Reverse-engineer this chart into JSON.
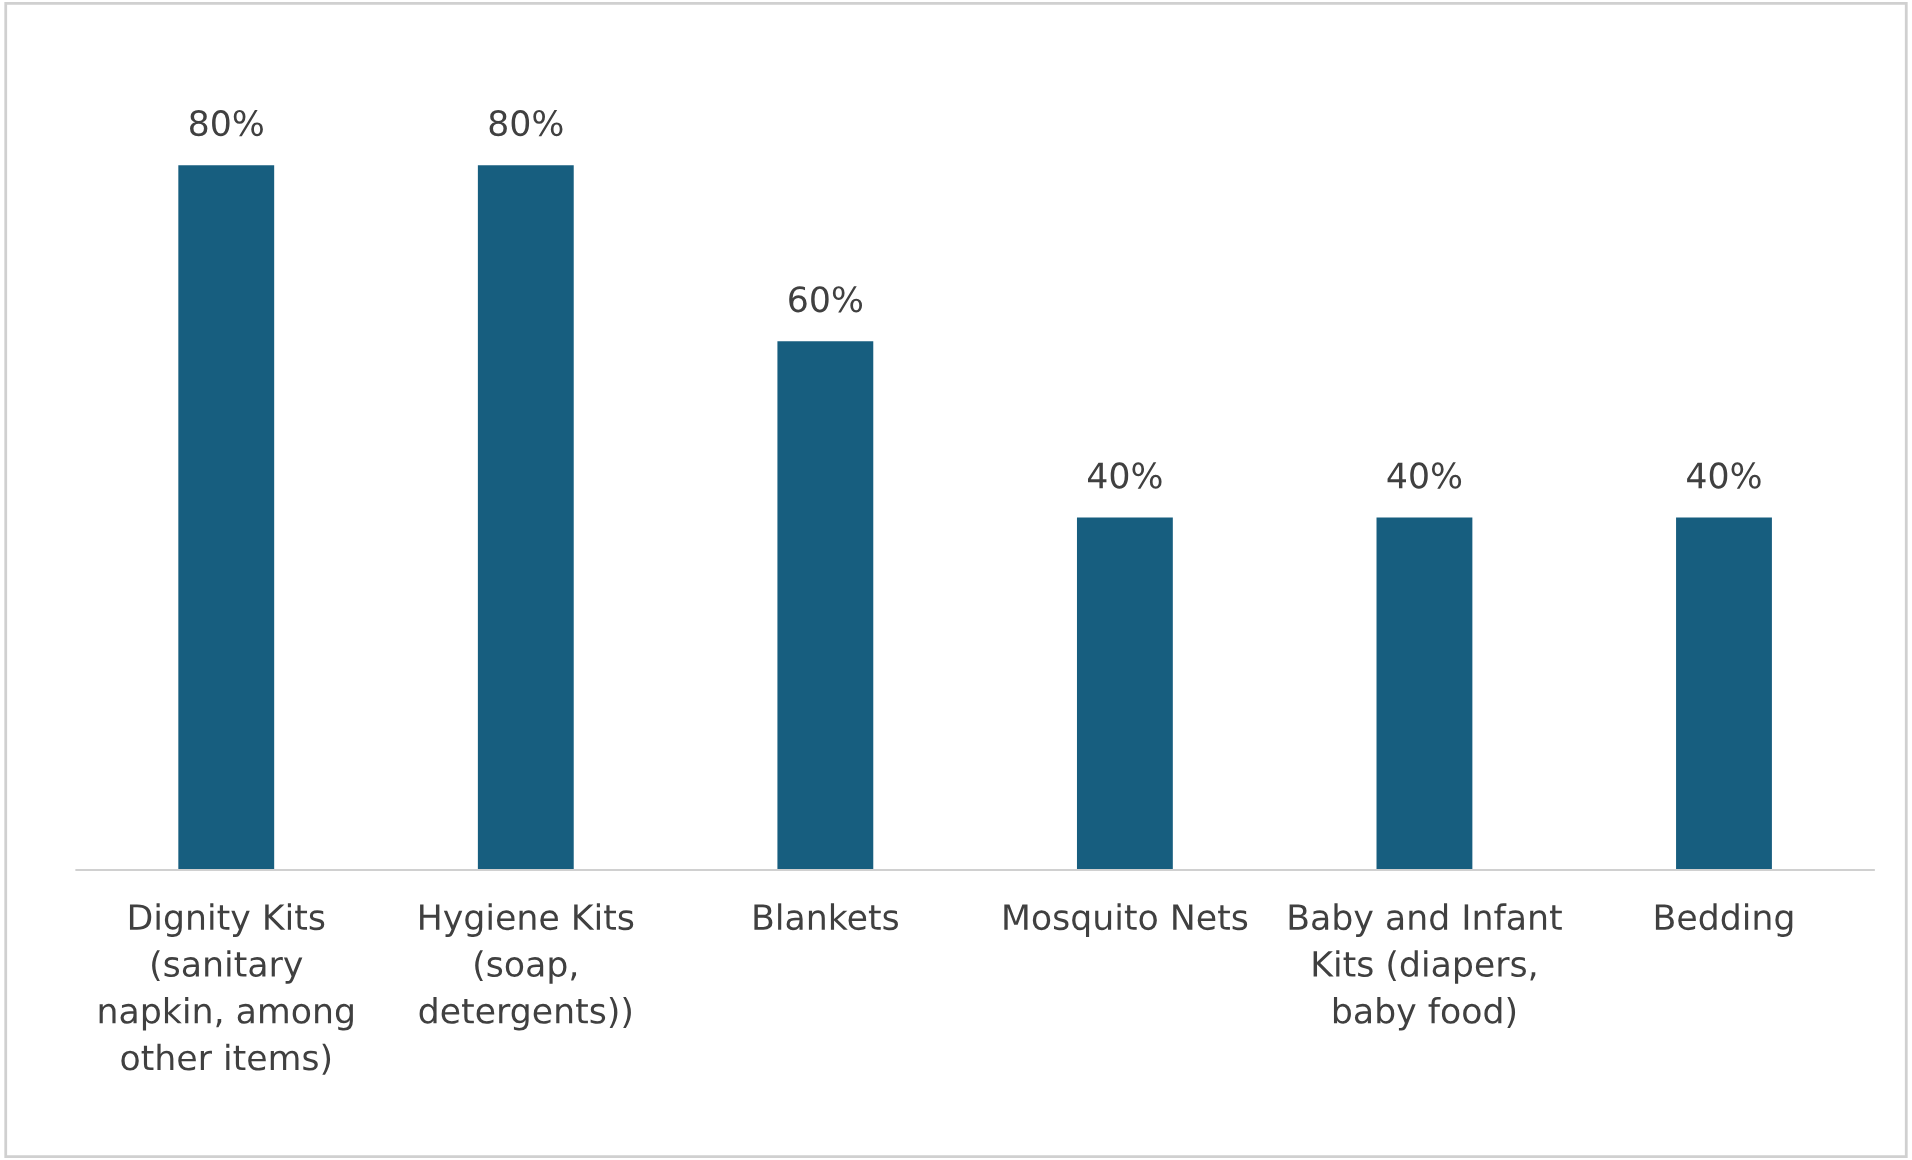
{
  "chart_data": {
    "type": "bar",
    "categories": [
      "Dignity Kits\n(sanitary\nnapkin, among\nother items)",
      "Hygiene Kits\n(soap,\ndetergents))",
      "Blankets",
      "Mosquito Nets",
      "Baby and Infant\nKits (diapers,\nbaby food)",
      "Bedding"
    ],
    "values": [
      80,
      80,
      60,
      40,
      40,
      40
    ],
    "value_labels": [
      "80%",
      "80%",
      "60%",
      "40%",
      "40%",
      "40%"
    ],
    "color": "#175e7f",
    "grid": false,
    "legend": false
  }
}
